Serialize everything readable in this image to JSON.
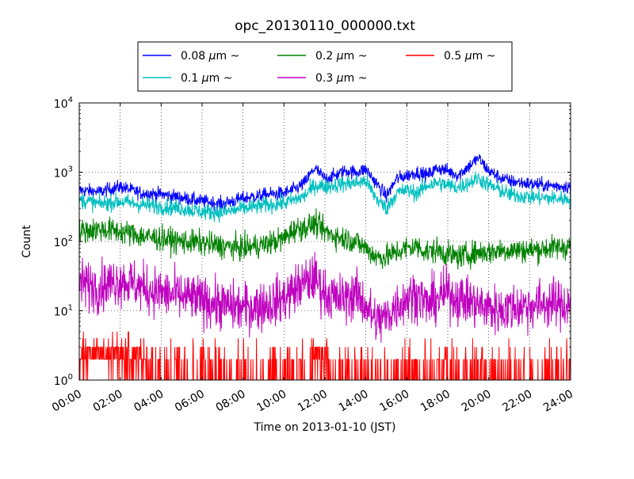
{
  "chart_data": {
    "type": "line",
    "title": "opc_20130110_000000.txt",
    "xlabel": "Time on 2013-01-10 (JST)",
    "ylabel": "Count",
    "yscale": "log",
    "ylim": [
      1,
      10000
    ],
    "xlim": [
      "00:00",
      "24:00"
    ],
    "xticks": [
      "00:00",
      "02:00",
      "04:00",
      "06:00",
      "08:00",
      "10:00",
      "12:00",
      "14:00",
      "16:00",
      "18:00",
      "20:00",
      "22:00",
      "24:00"
    ],
    "yticks": [
      {
        "base": "10",
        "exp": "0"
      },
      {
        "base": "10",
        "exp": "1"
      },
      {
        "base": "10",
        "exp": "2"
      },
      {
        "base": "10",
        "exp": "3"
      },
      {
        "base": "10",
        "exp": "4"
      }
    ],
    "grid": true,
    "legend_position": "top",
    "legend": [
      {
        "pre": "0.08 ",
        "mu": "μ",
        "post": "m ~",
        "color": "#0000ff"
      },
      {
        "pre": "0.1 ",
        "mu": "μ",
        "post": "m ~",
        "color": "#00bfbf"
      },
      {
        "pre": "0.2 ",
        "mu": "μ",
        "post": "m ~",
        "color": "#008000"
      },
      {
        "pre": "0.3 ",
        "mu": "μ",
        "post": "m ~",
        "color": "#bf00bf"
      },
      {
        "pre": "0.5 ",
        "mu": "μ",
        "post": "m ~",
        "color": "#ff0000"
      }
    ],
    "x_hours": [
      0,
      1,
      2,
      3,
      4,
      5,
      6,
      7,
      8,
      9,
      10,
      10.5,
      11,
      11.5,
      12,
      12.5,
      13,
      13.5,
      14,
      14.5,
      15,
      15.5,
      16,
      16.5,
      17,
      17.5,
      18,
      18.5,
      19,
      19.5,
      20,
      20.5,
      21,
      22,
      23,
      24
    ],
    "series": [
      {
        "name": "0.08 μm ~",
        "color": "#0000ff",
        "noise": 0.05,
        "values": [
          550,
          520,
          620,
          500,
          480,
          430,
          380,
          350,
          420,
          470,
          500,
          560,
          700,
          1150,
          800,
          900,
          1050,
          1000,
          1100,
          700,
          450,
          800,
          900,
          1000,
          900,
          1150,
          1050,
          900,
          1200,
          1600,
          1050,
          850,
          750,
          680,
          640,
          620
        ]
      },
      {
        "name": "0.1 μm ~",
        "color": "#00bfbf",
        "noise": 0.06,
        "values": [
          400,
          350,
          380,
          340,
          320,
          300,
          270,
          260,
          300,
          330,
          360,
          400,
          450,
          650,
          620,
          650,
          680,
          700,
          750,
          420,
          300,
          500,
          550,
          500,
          650,
          700,
          650,
          600,
          700,
          820,
          650,
          560,
          480,
          440,
          420,
          410
        ]
      },
      {
        "name": "0.2 μm ~",
        "color": "#008000",
        "noise": 0.09,
        "values": [
          140,
          150,
          140,
          120,
          110,
          100,
          95,
          85,
          80,
          90,
          110,
          150,
          160,
          180,
          140,
          120,
          110,
          100,
          80,
          60,
          60,
          70,
          80,
          85,
          70,
          75,
          65,
          60,
          65,
          70,
          70,
          75,
          75,
          75,
          80,
          85
        ]
      },
      {
        "name": "0.3 μm ~",
        "color": "#bf00bf",
        "noise": 0.18,
        "values": [
          25,
          22,
          28,
          22,
          18,
          16,
          14,
          12,
          11,
          12,
          15,
          20,
          25,
          30,
          18,
          15,
          15,
          18,
          12,
          7,
          8,
          12,
          15,
          18,
          12,
          15,
          18,
          15,
          14,
          12,
          11,
          10,
          11,
          12,
          13,
          12
        ]
      },
      {
        "name": "0.5 μm ~",
        "color": "#ff0000",
        "noise": 0,
        "values": [
          2,
          2,
          2,
          2,
          1,
          1,
          1,
          1,
          1,
          1,
          1,
          1,
          1,
          2,
          2,
          1,
          1,
          1,
          1,
          1,
          1,
          1,
          1,
          1,
          1,
          1,
          1,
          1,
          1,
          1,
          1,
          1,
          1,
          1,
          1,
          1
        ]
      }
    ]
  }
}
